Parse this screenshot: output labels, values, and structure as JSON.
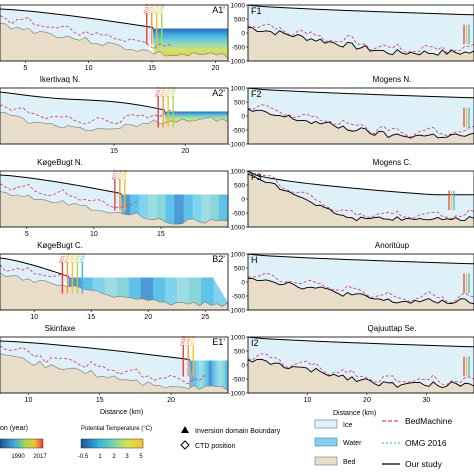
{
  "chart_data": {
    "type": "area",
    "panels_left": [
      {
        "id": "A1'",
        "caption": "Ikertivaq N.",
        "x_ticks": [
          5,
          10,
          15,
          20
        ],
        "xlim": [
          3,
          21
        ],
        "front_years": [
          "2017",
          "2014",
          "2010",
          "1990"
        ],
        "stratification": "bands"
      },
      {
        "id": "A2'",
        "caption": "KøgeBugt N.",
        "x_ticks": [
          15,
          20
        ],
        "xlim": [
          7,
          23
        ],
        "front_years": [
          "2017",
          "2014",
          "2010",
          "1990"
        ],
        "stratification": "bands"
      },
      {
        "id": "",
        "caption": "KøgeBugt C.",
        "x_ticks": [
          5,
          10,
          15
        ],
        "xlim": [
          3,
          20
        ],
        "front_years": [
          "2017",
          "2014",
          "1990"
        ],
        "stratification": "vertical"
      },
      {
        "id": "B2'",
        "caption": "Skinfaxe",
        "x_ticks": [
          10,
          15,
          20,
          25
        ],
        "xlim": [
          7,
          27
        ],
        "front_years": [
          "2017",
          "2016",
          "1992",
          "1981",
          "1931"
        ],
        "stratification": "mixed"
      },
      {
        "id": "E1'",
        "caption": "",
        "x_ticks": [
          10,
          15,
          20
        ],
        "xlim": [
          8,
          24
        ],
        "front_years": [
          "1933",
          "1965",
          "1972"
        ],
        "stratification": "vertical"
      }
    ],
    "panels_right": [
      {
        "id": "F1",
        "caption": "Mogens N.",
        "y_ticks": [
          1000,
          500,
          0,
          -500,
          -1000
        ],
        "ylim": [
          -1000,
          1000
        ]
      },
      {
        "id": "F2",
        "caption": "Mogens C.",
        "y_ticks": [
          1000,
          500,
          0,
          -500,
          -1000
        ],
        "ylim": [
          -1000,
          1000
        ]
      },
      {
        "id": "F3",
        "caption": "Anoritúup",
        "y_ticks": [
          1000,
          500,
          0,
          -500,
          -1000
        ],
        "ylim": [
          -1000,
          1000
        ]
      },
      {
        "id": "H",
        "caption": "Qajuuttap Se.",
        "y_ticks": [
          1000,
          500,
          0,
          -500,
          -1000
        ],
        "ylim": [
          -1000,
          1000
        ]
      },
      {
        "id": "I2",
        "caption": "",
        "y_ticks": [
          1000,
          500,
          0,
          -500,
          -1000
        ],
        "ylim": [
          -1000,
          1000
        ],
        "x_ticks": [
          10,
          20,
          30
        ],
        "xlim": [
          0,
          38
        ]
      }
    ],
    "xlabel": "Distance (km)"
  },
  "legend": {
    "year_title": "on (year)",
    "year_ticks": [
      "1990",
      "2017"
    ],
    "temp_title": "Potential Temperature (°C)",
    "temp_ticks": [
      "-0.5",
      "1",
      "2",
      "3",
      "5"
    ],
    "inversion_label": "Inversion domain Boundary",
    "ctd_label": "CTD position",
    "ice_label": "Ice",
    "water_label": "Water",
    "bed_label": "Bed",
    "bedmachine_label": "BedMachine",
    "omg_label": "OMG 2016",
    "our_study_label": "Our study"
  },
  "colors": {
    "ice": "#dff1f8",
    "water": "#7fd3ef",
    "bed": "#e7ddc8",
    "bedmachine": "#e0407a",
    "omg": "#2dbf7a",
    "our_study": "#000000"
  }
}
